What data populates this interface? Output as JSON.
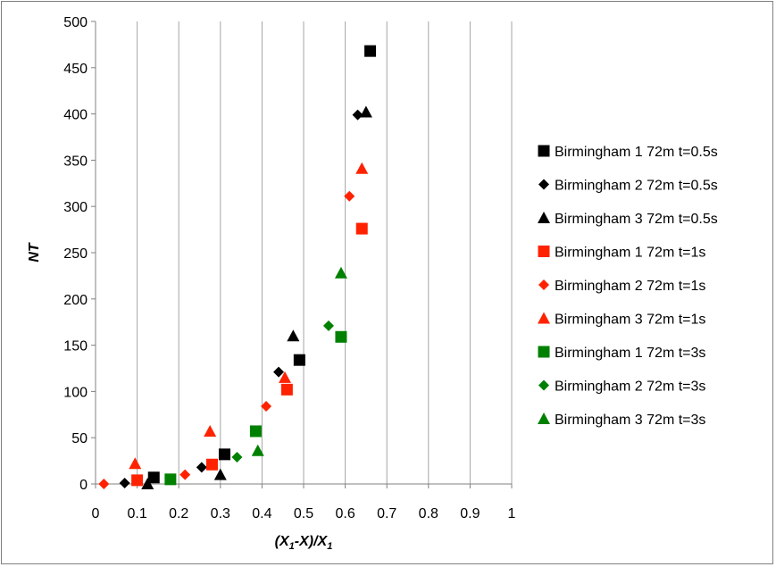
{
  "chart_data": {
    "type": "scatter",
    "title": "",
    "xlabel": {
      "parts": [
        {
          "t": "(X"
        },
        {
          "t": "1",
          "sub": true
        },
        {
          "t": "-X)/X"
        },
        {
          "t": "1",
          "sub": true
        }
      ]
    },
    "ylabel": "NT",
    "xlim": [
      0,
      1
    ],
    "ylim": [
      0,
      500
    ],
    "xticks": [
      0,
      0.1,
      0.2,
      0.3,
      0.4,
      0.5,
      0.6,
      0.7,
      0.8,
      0.9,
      1
    ],
    "xtick_labels": [
      "0",
      "0.1",
      "0.2",
      "0.3",
      "0.4",
      "0.5",
      "0.6",
      "0.7",
      "0.8",
      "0.9",
      "1"
    ],
    "yticks": [
      0,
      50,
      100,
      150,
      200,
      250,
      300,
      350,
      400,
      450,
      500
    ],
    "ytick_labels": [
      "0",
      "50",
      "100",
      "150",
      "200",
      "250",
      "300",
      "350",
      "400",
      "450",
      "500"
    ],
    "grid": "vertical",
    "legend_position": "right",
    "series": [
      {
        "name": "Birmingham 1 72m t=0.5s",
        "color": "#000000",
        "marker": "square",
        "points": [
          [
            0.14,
            7
          ],
          [
            0.31,
            32
          ],
          [
            0.49,
            134
          ],
          [
            0.66,
            468
          ]
        ]
      },
      {
        "name": "Birmingham 2 72m t=0.5s",
        "color": "#000000",
        "marker": "diamond",
        "points": [
          [
            0.07,
            1
          ],
          [
            0.255,
            18
          ],
          [
            0.44,
            121
          ],
          [
            0.63,
            399
          ]
        ]
      },
      {
        "name": "Birmingham 3 72m t=0.5s",
        "color": "#000000",
        "marker": "triangle",
        "points": [
          [
            0.125,
            0
          ],
          [
            0.3,
            10
          ],
          [
            0.475,
            160
          ],
          [
            0.65,
            402
          ]
        ]
      },
      {
        "name": "Birmingham 1 72m t=1s",
        "color": "#ff2200",
        "marker": "square",
        "points": [
          [
            0.1,
            4
          ],
          [
            0.28,
            21
          ],
          [
            0.46,
            102
          ],
          [
            0.64,
            276
          ]
        ]
      },
      {
        "name": "Birmingham 2 72m t=1s",
        "color": "#ff2200",
        "marker": "diamond",
        "points": [
          [
            0.02,
            0
          ],
          [
            0.215,
            10
          ],
          [
            0.41,
            84
          ],
          [
            0.61,
            311
          ]
        ]
      },
      {
        "name": "Birmingham 3 72m t=1s",
        "color": "#ff2200",
        "marker": "triangle",
        "points": [
          [
            0.095,
            22
          ],
          [
            0.275,
            57
          ],
          [
            0.455,
            115
          ],
          [
            0.64,
            341
          ]
        ]
      },
      {
        "name": "Birmingham 1 72m t=3s",
        "color": "#008000",
        "marker": "square",
        "points": [
          [
            0.18,
            5
          ],
          [
            0.385,
            57
          ],
          [
            0.59,
            159
          ]
        ]
      },
      {
        "name": "Birmingham 2 72m t=3s",
        "color": "#008000",
        "marker": "diamond",
        "points": [
          [
            0.34,
            29
          ],
          [
            0.56,
            171
          ]
        ]
      },
      {
        "name": "Birmingham 3 72m t=3s",
        "color": "#008000",
        "marker": "triangle",
        "points": [
          [
            0.39,
            36
          ],
          [
            0.59,
            228
          ]
        ]
      }
    ]
  }
}
